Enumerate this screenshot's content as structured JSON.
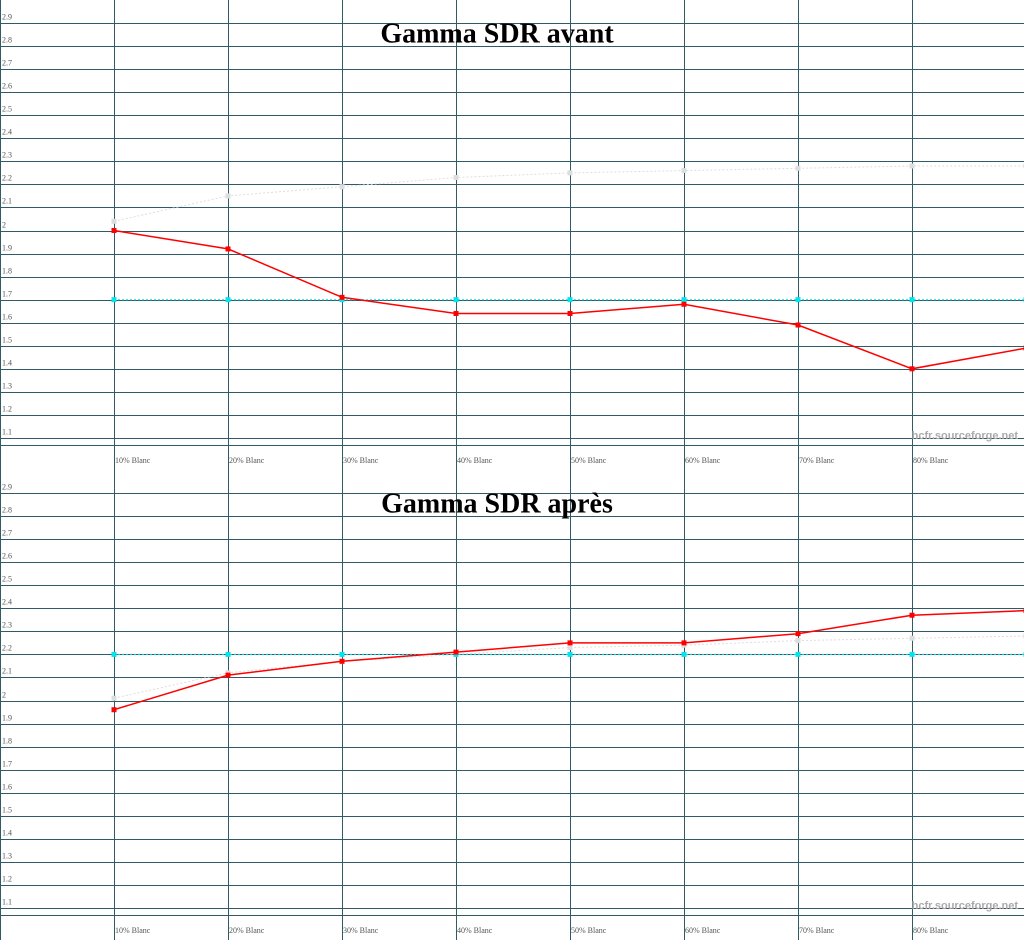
{
  "chart_data": [
    {
      "type": "line",
      "title": "Gamma SDR avant",
      "categories": [
        "10% Blanc",
        "20% Blanc",
        "30% Blanc",
        "40% Blanc",
        "50% Blanc",
        "60% Blanc",
        "70% Blanc",
        "80% Blanc",
        null
      ],
      "series": [
        {
          "color": "#dddddd",
          "dash": true,
          "values": [
            2.04,
            2.15,
            2.19,
            2.23,
            2.25,
            2.26,
            2.27,
            2.28,
            2.28
          ]
        },
        {
          "color": "#00e5ee",
          "dash": true,
          "values": [
            1.7,
            1.7,
            1.7,
            1.7,
            1.7,
            1.7,
            1.7,
            1.7,
            1.7
          ]
        },
        {
          "color": "#ff0000",
          "dash": false,
          "values": [
            2.0,
            1.92,
            1.71,
            1.64,
            1.64,
            1.68,
            1.59,
            1.4,
            1.49
          ]
        }
      ],
      "ylim": [
        1.0,
        3.0
      ],
      "yticks": [
        1.1,
        1.2,
        1.3,
        1.4,
        1.5,
        1.6,
        1.7,
        1.8,
        1.9,
        2,
        2.1,
        2.2,
        2.3,
        2.4,
        2.5,
        2.6,
        2.7,
        2.8,
        2.9
      ],
      "grid": true,
      "annotation": "hcfr.sourceforge.net"
    },
    {
      "type": "line",
      "title": "Gamma SDR après",
      "categories": [
        "10% Blanc",
        "20% Blanc",
        "30% Blanc",
        "40% Blanc",
        "50% Blanc",
        "60% Blanc",
        "70% Blanc",
        "80% Blanc",
        null
      ],
      "series": [
        {
          "color": "#dddddd",
          "dash": true,
          "values": [
            2.01,
            2.12,
            2.17,
            2.2,
            2.23,
            2.24,
            2.26,
            2.27,
            2.28
          ]
        },
        {
          "color": "#00e5ee",
          "dash": true,
          "values": [
            2.2,
            2.2,
            2.2,
            2.2,
            2.2,
            2.2,
            2.2,
            2.2,
            2.2
          ]
        },
        {
          "color": "#ff0000",
          "dash": false,
          "values": [
            1.96,
            2.11,
            2.17,
            2.21,
            2.25,
            2.25,
            2.29,
            2.37,
            2.39
          ]
        }
      ],
      "ylim": [
        1.0,
        3.0
      ],
      "yticks": [
        1.1,
        1.2,
        1.3,
        1.4,
        1.5,
        1.6,
        1.7,
        1.8,
        1.9,
        2,
        2.1,
        2.2,
        2.3,
        2.4,
        2.5,
        2.6,
        2.7,
        2.8,
        2.9
      ],
      "grid": true,
      "annotation": "hcfr.sourceforge.net"
    }
  ]
}
